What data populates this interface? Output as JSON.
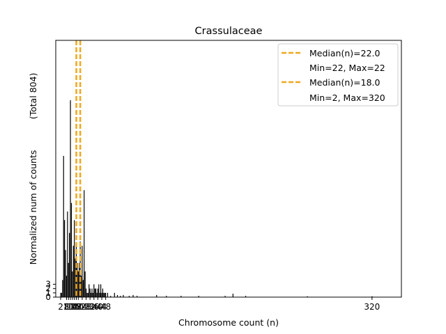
{
  "chart_data": {
    "type": "bar",
    "title": "Crassulaceae",
    "xlabel": "Chromosome count (n)",
    "ylabel": "Normalized num of counts",
    "ylabel_total": "(Total 804)",
    "xlim": [
      -3,
      350
    ],
    "ylim": [
      0,
      60
    ],
    "grid": false,
    "legend_position": "top-right",
    "x_ticks": [
      2,
      8,
      10,
      12,
      14,
      16,
      18,
      20,
      24,
      28,
      32,
      36,
      40,
      44,
      48,
      320
    ],
    "x_tick_labels": [
      "2",
      "8",
      "10",
      "12",
      "14",
      "16",
      "18",
      "20",
      "24",
      "28",
      "32",
      "36",
      "40",
      "44",
      "48",
      "320"
    ],
    "y_ticks": [
      0,
      1,
      2,
      3
    ],
    "y_tick_labels": [
      "0",
      "1",
      "2",
      "3"
    ],
    "bar_color": "#000000",
    "bars": [
      {
        "x": 2,
        "y": 1
      },
      {
        "x": 3,
        "y": 1
      },
      {
        "x": 4,
        "y": 4
      },
      {
        "x": 5,
        "y": 33
      },
      {
        "x": 6,
        "y": 18
      },
      {
        "x": 7,
        "y": 11
      },
      {
        "x": 8,
        "y": 5
      },
      {
        "x": 9,
        "y": 20
      },
      {
        "x": 10,
        "y": 8
      },
      {
        "x": 11,
        "y": 15
      },
      {
        "x": 12,
        "y": 46
      },
      {
        "x": 13,
        "y": 22
      },
      {
        "x": 14,
        "y": 6
      },
      {
        "x": 15,
        "y": 12
      },
      {
        "x": 16,
        "y": 18
      },
      {
        "x": 17,
        "y": 9
      },
      {
        "x": 18,
        "y": 12
      },
      {
        "x": 19,
        "y": 8
      },
      {
        "x": 20,
        "y": 6
      },
      {
        "x": 21,
        "y": 8
      },
      {
        "x": 22,
        "y": 13
      },
      {
        "x": 23,
        "y": 5
      },
      {
        "x": 24,
        "y": 12
      },
      {
        "x": 25,
        "y": 4
      },
      {
        "x": 26,
        "y": 25
      },
      {
        "x": 27,
        "y": 6
      },
      {
        "x": 28,
        "y": 2
      },
      {
        "x": 29,
        "y": 1
      },
      {
        "x": 30,
        "y": 1
      },
      {
        "x": 31,
        "y": 3
      },
      {
        "x": 32,
        "y": 2
      },
      {
        "x": 33,
        "y": 1
      },
      {
        "x": 34,
        "y": 2
      },
      {
        "x": 35,
        "y": 1
      },
      {
        "x": 36,
        "y": 3
      },
      {
        "x": 37,
        "y": 2
      },
      {
        "x": 38,
        "y": 2
      },
      {
        "x": 39,
        "y": 1
      },
      {
        "x": 40,
        "y": 2
      },
      {
        "x": 41,
        "y": 3
      },
      {
        "x": 42,
        "y": 1
      },
      {
        "x": 43,
        "y": 3
      },
      {
        "x": 44,
        "y": 1
      },
      {
        "x": 45,
        "y": 2
      },
      {
        "x": 46,
        "y": 1
      },
      {
        "x": 47,
        "y": 1
      },
      {
        "x": 48,
        "y": 1
      },
      {
        "x": 50,
        "y": 1
      },
      {
        "x": 53,
        "y": 0.3
      },
      {
        "x": 57,
        "y": 1
      },
      {
        "x": 60,
        "y": 0.5
      },
      {
        "x": 63,
        "y": 0.3
      },
      {
        "x": 66,
        "y": 0.5
      },
      {
        "x": 72,
        "y": 0.3
      },
      {
        "x": 76,
        "y": 0.5
      },
      {
        "x": 80,
        "y": 0.3
      },
      {
        "x": 100,
        "y": 0.5
      },
      {
        "x": 110,
        "y": 0.3
      },
      {
        "x": 125,
        "y": 0.3
      },
      {
        "x": 143,
        "y": 0.3
      },
      {
        "x": 170,
        "y": 0.3
      },
      {
        "x": 178,
        "y": 0.8
      },
      {
        "x": 191,
        "y": 0.3
      },
      {
        "x": 254,
        "y": 0.2
      },
      {
        "x": 320,
        "y": 0.2
      }
    ],
    "medians": [
      {
        "label": "Median(n)=22.0",
        "sublabel": "Min=22, Max=22",
        "value": 22,
        "color": "#f0a81e"
      },
      {
        "label": "Median(n)=18.0",
        "sublabel": "Min=2, Max=320",
        "value": 18,
        "color": "#f0a81e"
      }
    ]
  }
}
